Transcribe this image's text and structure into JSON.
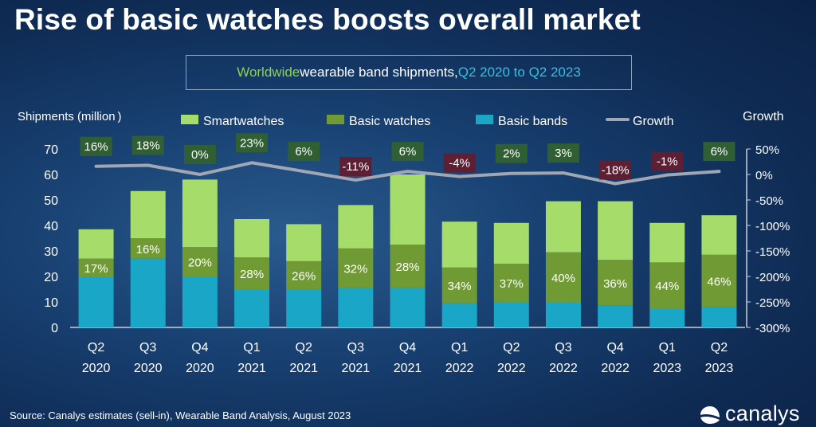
{
  "title": "Rise of basic watches boosts overall market",
  "subtitle": {
    "part1": "Worldwide",
    "part2": " wearable band shipments, ",
    "part3": "Q2 2020 to Q2 2023"
  },
  "source": "Source:  Canalys estimates (sell-in), Wearable Band Analysis, August 2023",
  "logo_text": "canalys",
  "colors": {
    "smartwatches": "#a6dc6a",
    "basic_watches": "#6f9a34",
    "basic_bands": "#1aa6c6",
    "growth_line": "#9ea7b3",
    "growth_pos_box": "#2f5f32",
    "growth_neg_box": "#5c1f33"
  },
  "chart_data": {
    "type": "bar",
    "stacked": true,
    "categories": [
      [
        "Q2",
        "2020"
      ],
      [
        "Q3",
        "2020"
      ],
      [
        "Q4",
        "2020"
      ],
      [
        "Q1",
        "2021"
      ],
      [
        "Q2",
        "2021"
      ],
      [
        "Q3",
        "2021"
      ],
      [
        "Q4",
        "2021"
      ],
      [
        "Q1",
        "2022"
      ],
      [
        "Q2",
        "2022"
      ],
      [
        "Q3",
        "2022"
      ],
      [
        "Q4",
        "2022"
      ],
      [
        "Q1",
        "2023"
      ],
      [
        "Q2",
        "2023"
      ]
    ],
    "series": [
      {
        "name": "Basic bands",
        "key": "basic_bands",
        "values": [
          20,
          27,
          20,
          15,
          15,
          15.5,
          15.5,
          9.5,
          10,
          10,
          8.5,
          7.5,
          8
        ]
      },
      {
        "name": "Basic watches",
        "key": "basic_watches",
        "values": [
          7,
          8,
          11.5,
          12.5,
          11,
          15.5,
          17,
          14,
          15,
          19.5,
          18,
          18,
          20.5
        ]
      },
      {
        "name": "Smartwatches",
        "key": "smartwatches",
        "values": [
          11.5,
          18.5,
          26.5,
          15,
          14.5,
          17,
          27.5,
          18,
          16,
          20,
          23,
          15.5,
          15.5
        ]
      }
    ],
    "bar_labels": [
      "17%",
      "16%",
      "20%",
      "28%",
      "26%",
      "32%",
      "28%",
      "34%",
      "37%",
      "40%",
      "36%",
      "44%",
      "46%"
    ],
    "growth": {
      "name": "Growth",
      "values": [
        16,
        18,
        0,
        23,
        6,
        -11,
        6,
        -4,
        2,
        3,
        -18,
        -1,
        6
      ],
      "labels": [
        "16%",
        "18%",
        "0%",
        "23%",
        "6%",
        "-11%",
        "6%",
        "-4%",
        "2%",
        "3%",
        "-18%",
        "-1%",
        "6%"
      ]
    },
    "ylabel_left": "Shipments (million )",
    "ylabel_right": "Growth",
    "ylim_left": [
      0,
      70
    ],
    "yticks_left": [
      "0",
      "10",
      "20",
      "30",
      "40",
      "50",
      "60",
      "70"
    ],
    "ylim_right": [
      -300,
      50
    ],
    "yticks_right": [
      "-300%",
      "-250%",
      "-200%",
      "-150%",
      "-100%",
      "-50%",
      "0%",
      "50%"
    ],
    "legend": [
      "Smartwatches",
      "Basic watches",
      "Basic bands",
      "Growth"
    ],
    "legend_placement": "top"
  }
}
